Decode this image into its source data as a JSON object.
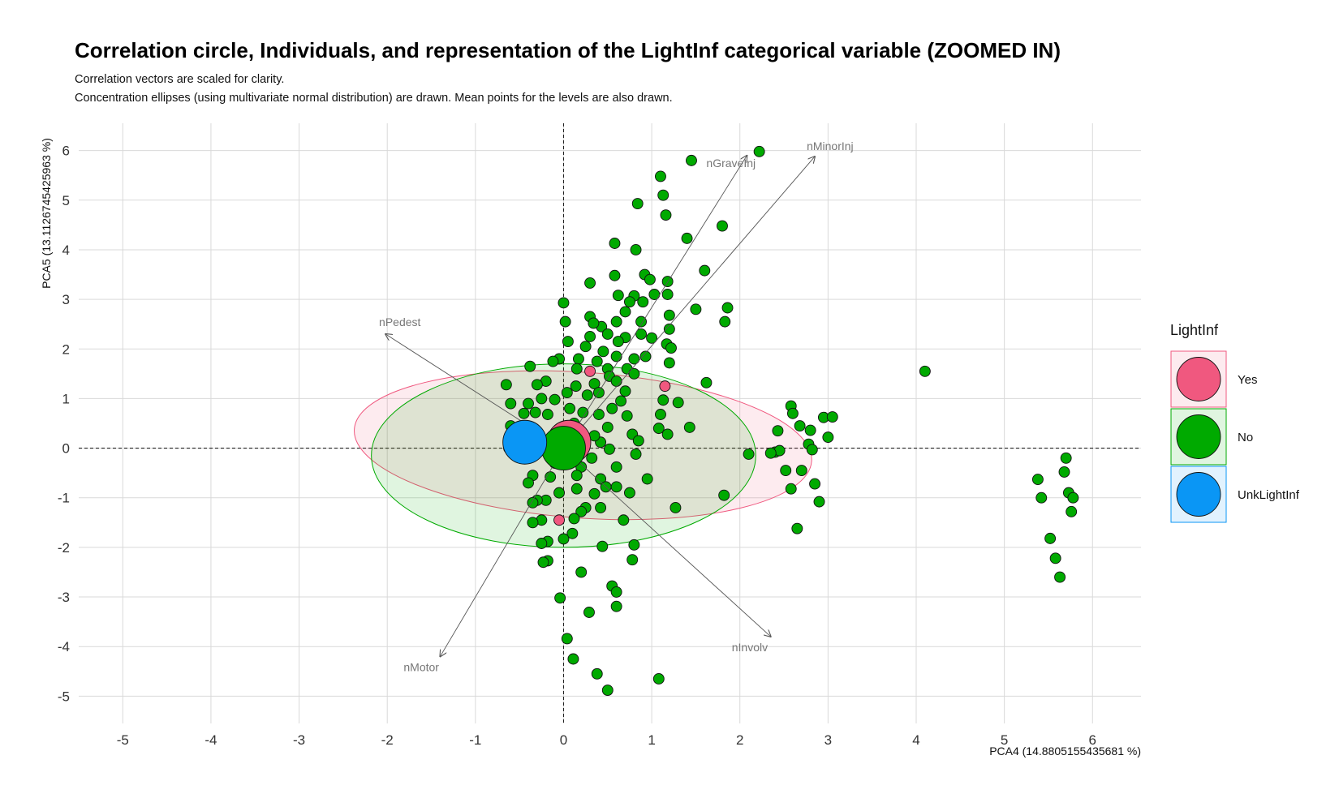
{
  "chart_data": {
    "type": "scatter",
    "title": "Correlation circle, Individuals, and representation of the LightInf categorical variable (ZOOMED IN)",
    "subtitle_lines": [
      "Correlation vectors are scaled for clarity.",
      "Concentration ellipses (using multivariate normal distribution) are drawn. Mean points for the levels are also drawn."
    ],
    "xlabel": "PCA4 (14.8805155435681 %)",
    "ylabel": "PCA5 (13.1126745425963 %)",
    "xlim": [
      -5.5,
      6.55
    ],
    "ylim": [
      -5.55,
      6.55
    ],
    "x_ticks": [
      -5,
      -4,
      -3,
      -2,
      -1,
      0,
      1,
      2,
      3,
      4,
      5,
      6
    ],
    "y_ticks": [
      -5,
      -4,
      -3,
      -2,
      -1,
      0,
      1,
      2,
      3,
      4,
      5,
      6
    ],
    "grid": true,
    "reference_lines": {
      "x": 0,
      "y": 0,
      "style": "dashed"
    },
    "legend": {
      "title": "LightInf",
      "position": "right",
      "entries": [
        {
          "name": "Yes",
          "color": "#f0587f"
        },
        {
          "name": "No",
          "color": "#00aa00"
        },
        {
          "name": "UnkLightInf",
          "color": "#0a96f5"
        }
      ]
    },
    "vectors": [
      {
        "name": "nGraveInj",
        "x": 2.08,
        "y": 5.9
      },
      {
        "name": "nMinorInj",
        "x": 2.85,
        "y": 5.88
      },
      {
        "name": "nPedest",
        "x": -2.02,
        "y": 2.3
      },
      {
        "name": "nMotor",
        "x": -1.4,
        "y": -4.2
      },
      {
        "name": "nInvolv",
        "x": 2.35,
        "y": -3.8
      }
    ],
    "ellipses": [
      {
        "level": "Yes",
        "cx": 0.22,
        "cy": 0.06,
        "rx": 2.6,
        "ry": 1.47,
        "angle_deg": -4
      },
      {
        "level": "No",
        "cx": 0.0,
        "cy": -0.15,
        "rx": 2.18,
        "ry": 1.85,
        "angle_deg": 0
      }
    ],
    "means": [
      {
        "level": "Yes",
        "x": 0.06,
        "y": 0.12
      },
      {
        "level": "No",
        "x": 0.0,
        "y": 0.0
      },
      {
        "level": "UnkLightInf",
        "x": -0.44,
        "y": 0.12
      }
    ],
    "series": [
      {
        "name": "Yes",
        "points": [
          [
            1.15,
            1.25
          ],
          [
            -0.05,
            -1.45
          ],
          [
            0.3,
            1.55
          ]
        ]
      },
      {
        "name": "No",
        "points": [
          [
            2.22,
            5.98
          ],
          [
            1.45,
            5.8
          ],
          [
            1.1,
            5.48
          ],
          [
            1.13,
            5.1
          ],
          [
            0.84,
            4.93
          ],
          [
            1.16,
            4.7
          ],
          [
            1.8,
            4.48
          ],
          [
            1.4,
            4.23
          ],
          [
            0.58,
            4.13
          ],
          [
            0.82,
            4.0
          ],
          [
            1.6,
            3.58
          ],
          [
            0.92,
            3.5
          ],
          [
            1.18,
            3.36
          ],
          [
            0.98,
            3.4
          ],
          [
            0.3,
            3.33
          ],
          [
            0.58,
            3.48
          ],
          [
            1.86,
            2.83
          ],
          [
            1.5,
            2.8
          ],
          [
            1.18,
            3.1
          ],
          [
            0.62,
            3.08
          ],
          [
            0.8,
            3.07
          ],
          [
            1.2,
            2.68
          ],
          [
            0.9,
            2.95
          ],
          [
            0.0,
            2.93
          ],
          [
            1.83,
            2.55
          ],
          [
            0.3,
            2.65
          ],
          [
            1.2,
            2.4
          ],
          [
            0.6,
            2.55
          ],
          [
            0.88,
            2.55
          ],
          [
            0.43,
            2.45
          ],
          [
            1.03,
            3.1
          ],
          [
            0.7,
            2.75
          ],
          [
            0.02,
            2.55
          ],
          [
            0.34,
            2.52
          ],
          [
            0.75,
            2.95
          ],
          [
            0.5,
            2.3
          ],
          [
            1.17,
            2.1
          ],
          [
            1.22,
            2.02
          ],
          [
            0.88,
            2.3
          ],
          [
            0.7,
            2.23
          ],
          [
            0.05,
            2.15
          ],
          [
            0.25,
            2.05
          ],
          [
            0.62,
            2.15
          ],
          [
            0.93,
            1.85
          ],
          [
            0.45,
            1.95
          ],
          [
            1.0,
            2.22
          ],
          [
            0.17,
            1.8
          ],
          [
            -0.05,
            1.8
          ],
          [
            1.2,
            1.72
          ],
          [
            0.8,
            1.8
          ],
          [
            0.6,
            1.85
          ],
          [
            0.38,
            1.75
          ],
          [
            0.3,
            2.25
          ],
          [
            0.72,
            1.6
          ],
          [
            0.5,
            1.6
          ],
          [
            0.15,
            1.6
          ],
          [
            -0.12,
            1.75
          ],
          [
            -0.38,
            1.65
          ],
          [
            0.52,
            1.45
          ],
          [
            0.35,
            1.3
          ],
          [
            0.8,
            1.5
          ],
          [
            0.6,
            1.35
          ],
          [
            0.14,
            1.25
          ],
          [
            -0.2,
            1.35
          ],
          [
            -0.3,
            1.28
          ],
          [
            1.62,
            1.32
          ],
          [
            0.04,
            1.12
          ],
          [
            0.4,
            1.12
          ],
          [
            0.27,
            1.07
          ],
          [
            0.7,
            1.15
          ],
          [
            1.13,
            0.97
          ],
          [
            1.3,
            0.92
          ],
          [
            0.65,
            0.95
          ],
          [
            0.55,
            0.8
          ],
          [
            -0.1,
            0.98
          ],
          [
            -0.25,
            1.0
          ],
          [
            -0.4,
            0.9
          ],
          [
            -0.6,
            0.9
          ],
          [
            -0.65,
            1.28
          ],
          [
            0.07,
            0.8
          ],
          [
            0.22,
            0.72
          ],
          [
            0.4,
            0.68
          ],
          [
            0.72,
            0.65
          ],
          [
            1.1,
            0.68
          ],
          [
            -0.18,
            0.68
          ],
          [
            -0.32,
            0.72
          ],
          [
            -0.45,
            0.7
          ],
          [
            0.12,
            0.5
          ],
          [
            0.5,
            0.42
          ],
          [
            1.08,
            0.4
          ],
          [
            1.43,
            0.42
          ],
          [
            1.18,
            0.28
          ],
          [
            0.78,
            0.28
          ],
          [
            0.85,
            0.15
          ],
          [
            0.42,
            0.12
          ],
          [
            0.35,
            0.25
          ],
          [
            -0.6,
            0.45
          ],
          [
            -0.55,
            0.28
          ],
          [
            0.2,
            0.05
          ],
          [
            0.52,
            -0.02
          ],
          [
            0.1,
            -0.15
          ],
          [
            0.82,
            -0.12
          ],
          [
            -0.45,
            0.02
          ],
          [
            -0.62,
            0.0
          ],
          [
            0.32,
            -0.2
          ],
          [
            -0.1,
            -0.3
          ],
          [
            0.2,
            -0.38
          ],
          [
            0.6,
            -0.38
          ],
          [
            -0.35,
            -0.55
          ],
          [
            -0.15,
            -0.58
          ],
          [
            0.15,
            -0.55
          ],
          [
            0.42,
            -0.62
          ],
          [
            0.95,
            -0.62
          ],
          [
            0.6,
            -0.78
          ],
          [
            0.48,
            -0.78
          ],
          [
            0.35,
            -0.92
          ],
          [
            -0.05,
            -0.9
          ],
          [
            0.15,
            -0.82
          ],
          [
            -0.4,
            -0.7
          ],
          [
            -0.2,
            -1.05
          ],
          [
            0.75,
            -0.9
          ],
          [
            1.82,
            -0.95
          ],
          [
            0.25,
            -1.2
          ],
          [
            -0.3,
            -1.05
          ],
          [
            -0.35,
            -1.1
          ],
          [
            0.42,
            -1.2
          ],
          [
            1.27,
            -1.2
          ],
          [
            0.2,
            -1.28
          ],
          [
            0.12,
            -1.42
          ],
          [
            -0.25,
            -1.45
          ],
          [
            -0.35,
            -1.5
          ],
          [
            0.68,
            -1.45
          ],
          [
            0.1,
            -1.72
          ],
          [
            -0.18,
            -1.88
          ],
          [
            -0.25,
            -1.92
          ],
          [
            0.0,
            -1.83
          ],
          [
            0.44,
            -1.98
          ],
          [
            0.8,
            -1.95
          ],
          [
            0.78,
            -2.25
          ],
          [
            -0.18,
            -2.27
          ],
          [
            -0.23,
            -2.3
          ],
          [
            0.2,
            -2.5
          ],
          [
            0.55,
            -2.78
          ],
          [
            0.6,
            -2.9
          ],
          [
            -0.04,
            -3.02
          ],
          [
            0.6,
            -3.19
          ],
          [
            0.29,
            -3.31
          ],
          [
            0.04,
            -3.84
          ],
          [
            0.11,
            -4.25
          ],
          [
            0.38,
            -4.55
          ],
          [
            1.08,
            -4.65
          ],
          [
            0.5,
            -4.88
          ],
          [
            2.58,
            0.85
          ],
          [
            2.6,
            0.7
          ],
          [
            2.95,
            0.62
          ],
          [
            3.05,
            0.63
          ],
          [
            2.8,
            0.36
          ],
          [
            2.68,
            0.45
          ],
          [
            2.43,
            0.35
          ],
          [
            2.78,
            0.08
          ],
          [
            3.0,
            0.22
          ],
          [
            2.82,
            -0.03
          ],
          [
            2.4,
            -0.08
          ],
          [
            2.45,
            -0.05
          ],
          [
            2.35,
            -0.1
          ],
          [
            2.1,
            -0.12
          ],
          [
            2.52,
            -0.45
          ],
          [
            2.7,
            -0.45
          ],
          [
            2.85,
            -0.72
          ],
          [
            2.58,
            -0.82
          ],
          [
            2.9,
            -1.08
          ],
          [
            2.65,
            -1.62
          ],
          [
            4.1,
            1.55
          ],
          [
            5.7,
            -0.2
          ],
          [
            5.38,
            -0.63
          ],
          [
            5.68,
            -0.48
          ],
          [
            5.73,
            -0.9
          ],
          [
            5.78,
            -1.0
          ],
          [
            5.42,
            -1.0
          ],
          [
            5.76,
            -1.28
          ],
          [
            5.52,
            -1.82
          ],
          [
            5.58,
            -2.22
          ],
          [
            5.63,
            -2.6
          ]
        ]
      }
    ]
  }
}
